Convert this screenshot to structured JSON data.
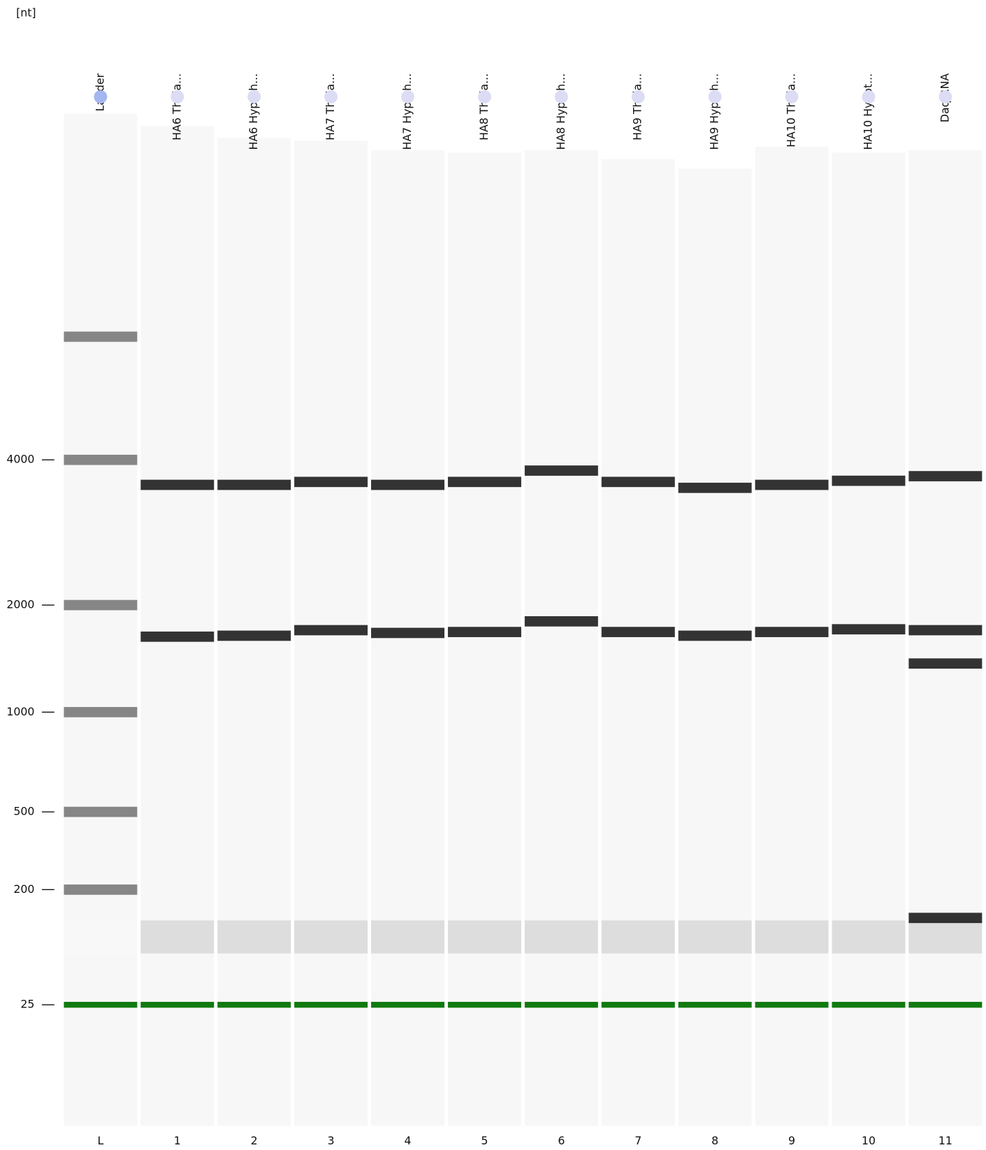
{
  "chart_data": {
    "type": "gel",
    "ylabel": "[nt]",
    "yticks": [
      25,
      200,
      500,
      1000,
      2000,
      4000
    ],
    "band_color": "#111111",
    "ladder_color": "#555555",
    "marker_color": "#107a10",
    "marker": 25,
    "lanes": [
      {
        "label": "Ladder",
        "number": "L",
        "bands": [
          200,
          500,
          1000,
          2000,
          4000,
          7200
        ]
      },
      {
        "label": "HA6 Thala...",
        "number": "1",
        "bands": [
          3550,
          1630
        ]
      },
      {
        "label": "HA6 Hypoth...",
        "number": "2",
        "bands": [
          3550,
          1640
        ]
      },
      {
        "label": "HA7 Thala...",
        "number": "3",
        "bands": [
          3600,
          1700
        ]
      },
      {
        "label": "HA7 Hypoth...",
        "number": "4",
        "bands": [
          3550,
          1670
        ]
      },
      {
        "label": "HA8 Thala...",
        "number": "5",
        "bands": [
          3600,
          1680
        ]
      },
      {
        "label": "HA8 Hypoth...",
        "number": "6",
        "bands": [
          3800,
          1800
        ]
      },
      {
        "label": "HA9 Thala...",
        "number": "7",
        "bands": [
          3600,
          1680
        ]
      },
      {
        "label": "HA9 Hypoth...",
        "number": "8",
        "bands": [
          3500,
          1640
        ]
      },
      {
        "label": "HA10 Thala...",
        "number": "9",
        "bands": [
          3550,
          1680
        ]
      },
      {
        "label": "HA10 Hypot...",
        "number": "10",
        "bands": [
          3620,
          1710
        ]
      },
      {
        "label": "Daq RNA",
        "number": "11",
        "bands": [
          3700,
          1700,
          1370,
          120
        ]
      }
    ]
  }
}
